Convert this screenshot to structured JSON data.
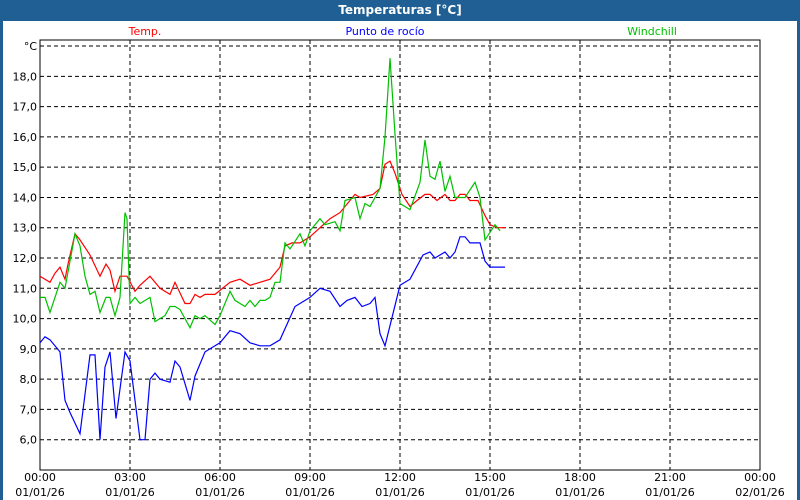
{
  "window": {
    "title": "Temperaturas [°C]"
  },
  "chart_data": {
    "type": "line",
    "title": "Temperaturas [°C]",
    "ylabel": "°C",
    "ylim": [
      5,
      19.2
    ],
    "yticks": [
      "6,0",
      "7,0",
      "8,0",
      "9,0",
      "10,0",
      "11,0",
      "12,0",
      "13,0",
      "14,0",
      "15,0",
      "16,0",
      "17,0",
      "18,0"
    ],
    "ytick_values": [
      6,
      7,
      8,
      9,
      10,
      11,
      12,
      13,
      14,
      15,
      16,
      17,
      18
    ],
    "xlim": [
      "01/01/26 00:00",
      "02/01/26 00:00"
    ],
    "xticks": [
      {
        "time": "00:00",
        "date": "01/01/26"
      },
      {
        "time": "03:00",
        "date": "01/01/26"
      },
      {
        "time": "06:00",
        "date": "01/01/26"
      },
      {
        "time": "09:00",
        "date": "01/01/26"
      },
      {
        "time": "12:00",
        "date": "01/01/26"
      },
      {
        "time": "15:00",
        "date": "01/01/26"
      },
      {
        "time": "18:00",
        "date": "01/01/26"
      },
      {
        "time": "21:00",
        "date": "01/01/26"
      },
      {
        "time": "00:00",
        "date": "02/01/26"
      }
    ],
    "grid": true,
    "legend_placement": "top",
    "series": [
      {
        "name": "Temp.",
        "color": "#ff0000",
        "points": [
          [
            "00:00",
            11.4
          ],
          [
            "00:20",
            11.2
          ],
          [
            "00:30",
            11.5
          ],
          [
            "00:40",
            11.7
          ],
          [
            "00:50",
            11.3
          ],
          [
            "00:56",
            11.8
          ],
          [
            "01:10",
            12.8
          ],
          [
            "01:20",
            12.6
          ],
          [
            "01:40",
            12.1
          ],
          [
            "02:00",
            11.4
          ],
          [
            "02:12",
            11.8
          ],
          [
            "02:20",
            11.6
          ],
          [
            "02:30",
            10.9
          ],
          [
            "02:40",
            11.4
          ],
          [
            "02:54",
            11.4
          ],
          [
            "03:10",
            10.9
          ],
          [
            "03:20",
            11.1
          ],
          [
            "03:40",
            11.4
          ],
          [
            "04:00",
            11.0
          ],
          [
            "04:20",
            10.8
          ],
          [
            "04:30",
            11.2
          ],
          [
            "04:50",
            10.5
          ],
          [
            "05:00",
            10.5
          ],
          [
            "05:10",
            10.8
          ],
          [
            "05:20",
            10.7
          ],
          [
            "05:30",
            10.8
          ],
          [
            "05:50",
            10.8
          ],
          [
            "06:20",
            11.2
          ],
          [
            "06:40",
            11.3
          ],
          [
            "07:00",
            11.1
          ],
          [
            "07:20",
            11.2
          ],
          [
            "07:40",
            11.3
          ],
          [
            "08:00",
            11.7
          ],
          [
            "08:10",
            12.4
          ],
          [
            "08:24",
            12.5
          ],
          [
            "08:40",
            12.5
          ],
          [
            "09:00",
            12.7
          ],
          [
            "09:20",
            13.0
          ],
          [
            "09:40",
            13.3
          ],
          [
            "10:00",
            13.5
          ],
          [
            "10:30",
            14.1
          ],
          [
            "10:40",
            14.0
          ],
          [
            "11:06",
            14.1
          ],
          [
            "11:20",
            14.3
          ],
          [
            "11:30",
            15.1
          ],
          [
            "11:40",
            15.2
          ],
          [
            "11:50",
            14.8
          ],
          [
            "12:04",
            14.1
          ],
          [
            "12:20",
            13.7
          ],
          [
            "12:34",
            13.9
          ],
          [
            "12:50",
            14.1
          ],
          [
            "13:00",
            14.1
          ],
          [
            "13:14",
            13.9
          ],
          [
            "13:30",
            14.1
          ],
          [
            "13:40",
            13.9
          ],
          [
            "13:50",
            13.9
          ],
          [
            "14:00",
            14.1
          ],
          [
            "14:10",
            14.1
          ],
          [
            "14:20",
            13.9
          ],
          [
            "14:36",
            13.9
          ],
          [
            "14:50",
            13.4
          ],
          [
            "15:00",
            13.1
          ],
          [
            "15:14",
            13.0
          ],
          [
            "15:30",
            13.0
          ]
        ]
      },
      {
        "name": "Punto de rocío",
        "color": "#0000ff",
        "points": [
          [
            "00:00",
            9.2
          ],
          [
            "00:10",
            9.4
          ],
          [
            "00:20",
            9.3
          ],
          [
            "00:40",
            8.9
          ],
          [
            "00:50",
            7.3
          ],
          [
            "01:00",
            6.9
          ],
          [
            "01:20",
            6.2
          ],
          [
            "01:40",
            8.8
          ],
          [
            "01:50",
            8.8
          ],
          [
            "02:00",
            6.0
          ],
          [
            "02:10",
            8.4
          ],
          [
            "02:20",
            8.9
          ],
          [
            "02:32",
            6.7
          ],
          [
            "02:50",
            8.9
          ],
          [
            "03:00",
            8.6
          ],
          [
            "03:20",
            6.0
          ],
          [
            "03:30",
            6.0
          ],
          [
            "03:40",
            8.0
          ],
          [
            "03:50",
            8.2
          ],
          [
            "04:00",
            8.0
          ],
          [
            "04:20",
            7.9
          ],
          [
            "04:30",
            8.6
          ],
          [
            "04:40",
            8.4
          ],
          [
            "05:00",
            7.3
          ],
          [
            "05:10",
            8.1
          ],
          [
            "05:30",
            8.9
          ],
          [
            "05:50",
            9.1
          ],
          [
            "06:00",
            9.2
          ],
          [
            "06:20",
            9.6
          ],
          [
            "06:40",
            9.5
          ],
          [
            "07:00",
            9.2
          ],
          [
            "07:20",
            9.1
          ],
          [
            "07:40",
            9.1
          ],
          [
            "08:00",
            9.3
          ],
          [
            "08:30",
            10.4
          ],
          [
            "09:00",
            10.7
          ],
          [
            "09:20",
            11.0
          ],
          [
            "09:40",
            10.9
          ],
          [
            "10:00",
            10.4
          ],
          [
            "10:14",
            10.6
          ],
          [
            "10:30",
            10.7
          ],
          [
            "10:44",
            10.4
          ],
          [
            "11:00",
            10.5
          ],
          [
            "11:10",
            10.7
          ],
          [
            "11:20",
            9.5
          ],
          [
            "11:30",
            9.1
          ],
          [
            "12:00",
            11.1
          ],
          [
            "12:20",
            11.3
          ],
          [
            "12:46",
            12.1
          ],
          [
            "13:00",
            12.2
          ],
          [
            "13:10",
            12.0
          ],
          [
            "13:30",
            12.2
          ],
          [
            "13:40",
            12.0
          ],
          [
            "13:50",
            12.2
          ],
          [
            "14:00",
            12.7
          ],
          [
            "14:10",
            12.7
          ],
          [
            "14:20",
            12.5
          ],
          [
            "14:40",
            12.5
          ],
          [
            "14:50",
            11.9
          ],
          [
            "15:00",
            11.7
          ],
          [
            "15:20",
            11.7
          ],
          [
            "15:30",
            11.7
          ]
        ]
      },
      {
        "name": "Windchill",
        "color": "#00c000",
        "points": [
          [
            "00:00",
            10.7
          ],
          [
            "00:10",
            10.7
          ],
          [
            "00:20",
            10.2
          ],
          [
            "00:40",
            11.2
          ],
          [
            "00:50",
            11.0
          ],
          [
            "01:10",
            12.8
          ],
          [
            "01:20",
            12.4
          ],
          [
            "01:30",
            11.4
          ],
          [
            "01:40",
            10.8
          ],
          [
            "01:50",
            10.9
          ],
          [
            "02:00",
            10.2
          ],
          [
            "02:12",
            10.7
          ],
          [
            "02:20",
            10.7
          ],
          [
            "02:30",
            10.1
          ],
          [
            "02:40",
            10.7
          ],
          [
            "02:50",
            13.5
          ],
          [
            "02:54",
            13.3
          ],
          [
            "03:00",
            10.5
          ],
          [
            "03:10",
            10.7
          ],
          [
            "03:20",
            10.5
          ],
          [
            "03:40",
            10.7
          ],
          [
            "03:50",
            9.9
          ],
          [
            "04:10",
            10.1
          ],
          [
            "04:20",
            10.4
          ],
          [
            "04:30",
            10.4
          ],
          [
            "04:40",
            10.3
          ],
          [
            "05:00",
            9.7
          ],
          [
            "05:10",
            10.1
          ],
          [
            "05:20",
            10.0
          ],
          [
            "05:30",
            10.1
          ],
          [
            "05:50",
            9.8
          ],
          [
            "06:00",
            10.1
          ],
          [
            "06:20",
            10.9
          ],
          [
            "06:30",
            10.6
          ],
          [
            "06:50",
            10.4
          ],
          [
            "07:00",
            10.6
          ],
          [
            "07:10",
            10.4
          ],
          [
            "07:20",
            10.6
          ],
          [
            "07:30",
            10.6
          ],
          [
            "07:40",
            10.7
          ],
          [
            "07:50",
            11.2
          ],
          [
            "08:00",
            11.2
          ],
          [
            "08:10",
            12.5
          ],
          [
            "08:20",
            12.3
          ],
          [
            "08:40",
            12.8
          ],
          [
            "08:50",
            12.4
          ],
          [
            "09:00",
            12.9
          ],
          [
            "09:20",
            13.3
          ],
          [
            "09:30",
            13.1
          ],
          [
            "09:50",
            13.2
          ],
          [
            "10:00",
            12.9
          ],
          [
            "10:10",
            13.9
          ],
          [
            "10:30",
            14.0
          ],
          [
            "10:40",
            13.3
          ],
          [
            "10:50",
            13.8
          ],
          [
            "11:00",
            13.7
          ],
          [
            "11:20",
            14.3
          ],
          [
            "11:30",
            16.0
          ],
          [
            "11:40",
            18.6
          ],
          [
            "11:50",
            16.1
          ],
          [
            "12:00",
            13.8
          ],
          [
            "12:20",
            13.6
          ],
          [
            "12:40",
            14.5
          ],
          [
            "12:50",
            15.9
          ],
          [
            "13:00",
            14.7
          ],
          [
            "13:10",
            14.6
          ],
          [
            "13:20",
            15.2
          ],
          [
            "13:30",
            14.2
          ],
          [
            "13:40",
            14.7
          ],
          [
            "13:50",
            14.0
          ],
          [
            "14:10",
            14.0
          ],
          [
            "14:30",
            14.5
          ],
          [
            "14:40",
            14.0
          ],
          [
            "14:50",
            12.6
          ],
          [
            "15:10",
            13.1
          ],
          [
            "15:20",
            12.9
          ]
        ]
      }
    ]
  }
}
